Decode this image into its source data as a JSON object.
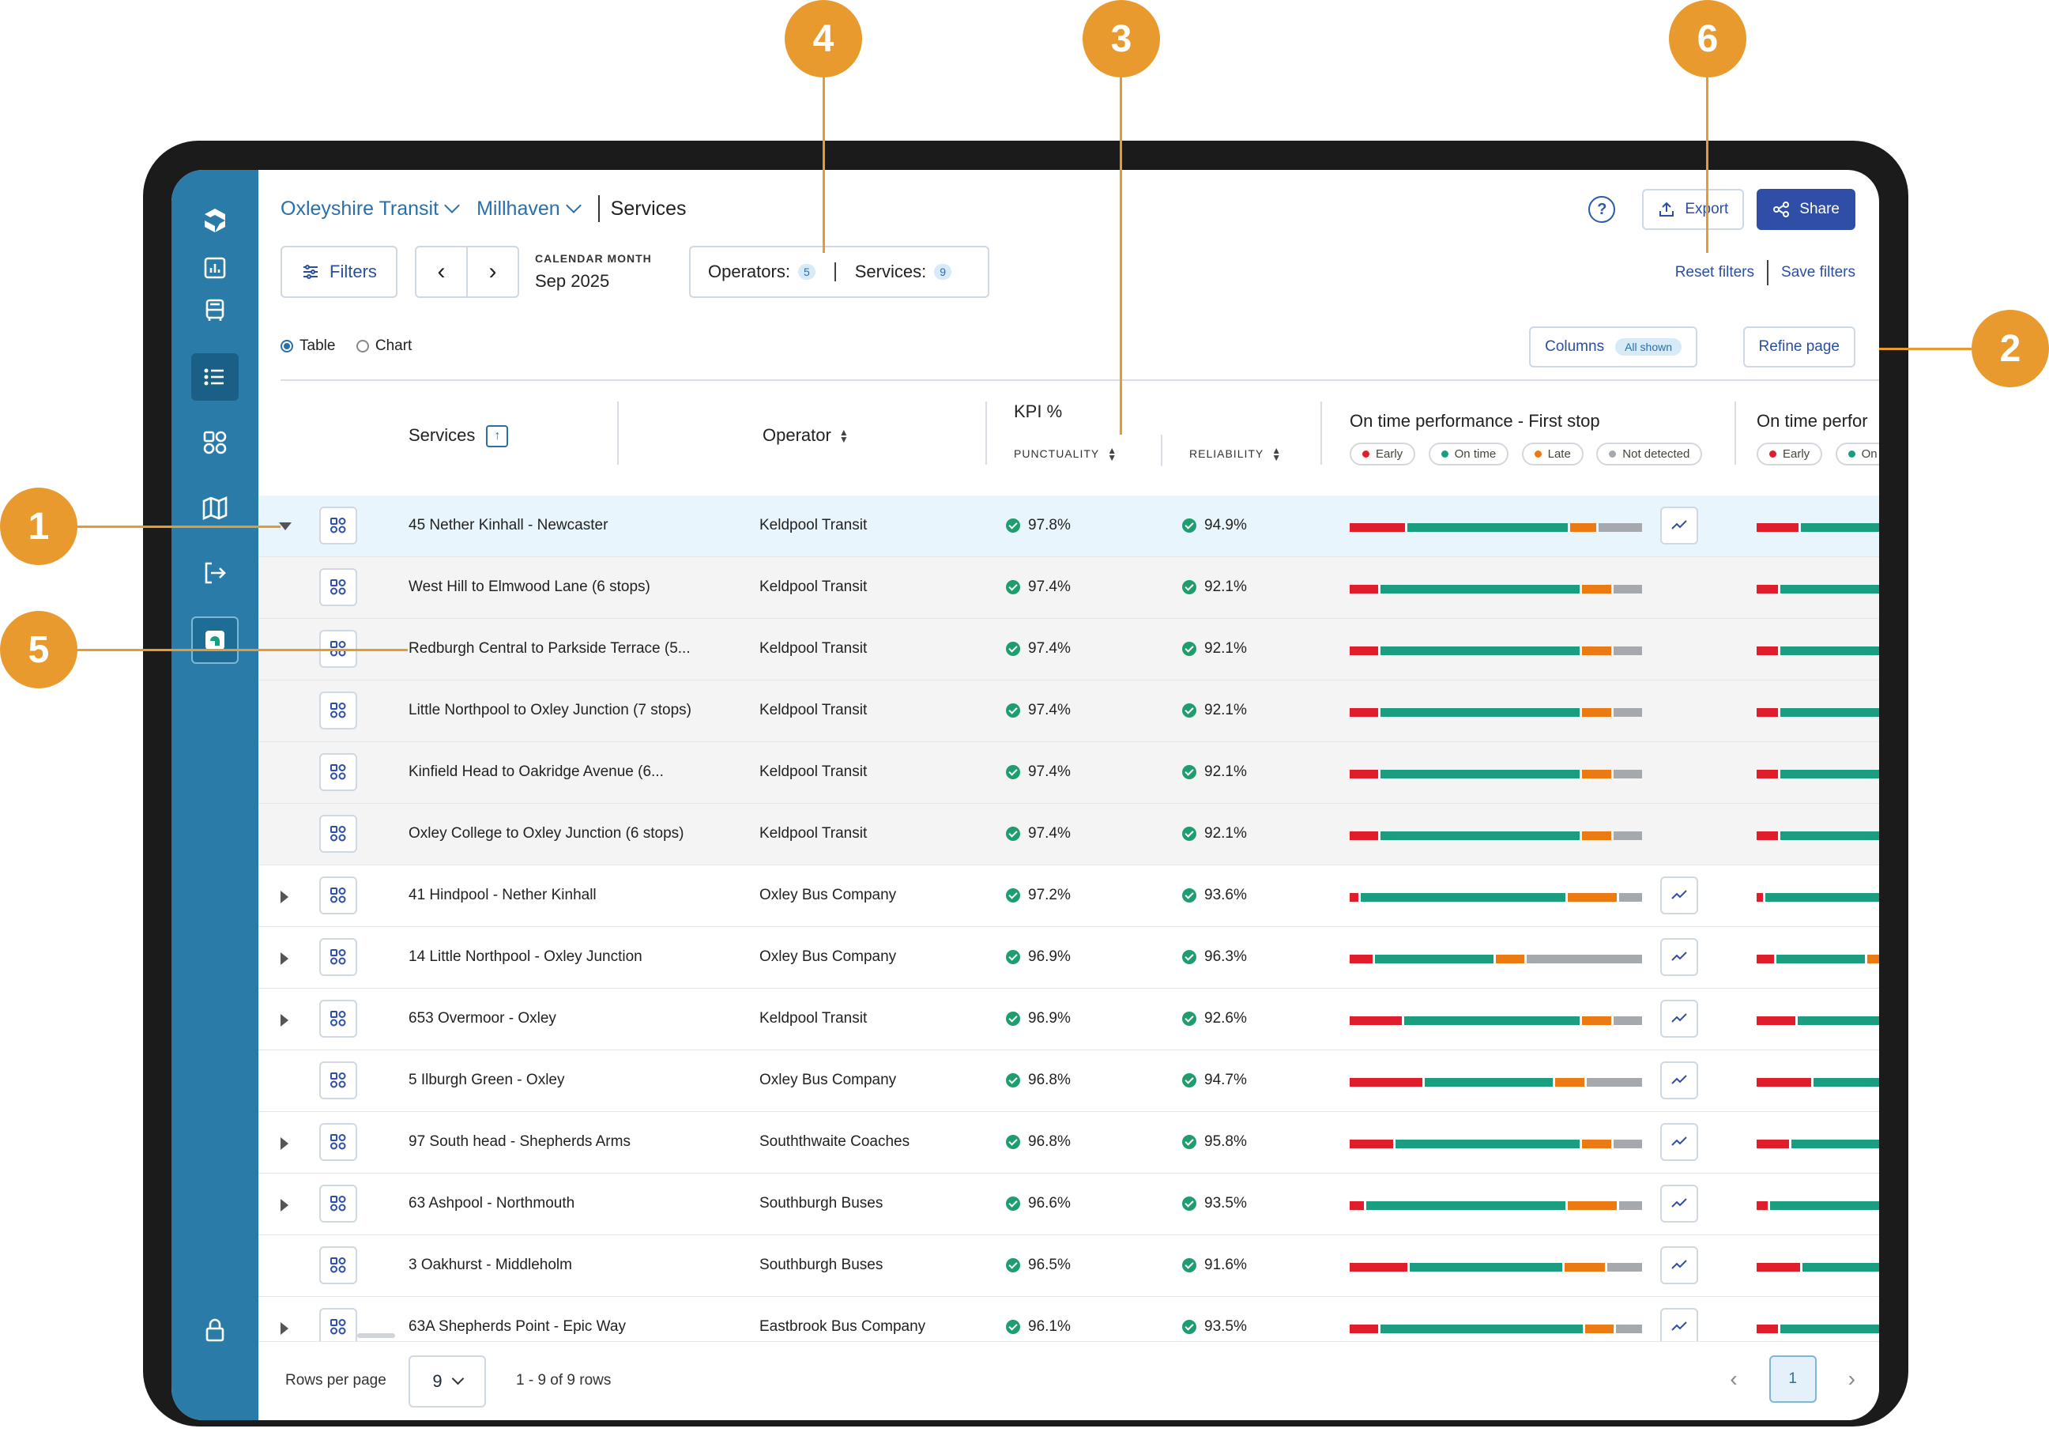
{
  "callouts": [
    "1",
    "2",
    "3",
    "4",
    "5",
    "6"
  ],
  "breadcrumb": {
    "org": "Oxleyshire Transit",
    "region": "Millhaven",
    "page": "Services"
  },
  "header": {
    "export_label": "Export",
    "share_label": "Share",
    "help_icon": "?"
  },
  "filters": {
    "filters_label": "Filters",
    "calendar_label": "CALENDAR MONTH",
    "calendar_value": "Sep 2025",
    "operators_label": "Operators:",
    "operators_count": "5",
    "services_label": "Services:",
    "services_count": "9",
    "reset_label": "Reset filters",
    "save_label": "Save filters"
  },
  "view": {
    "table_label": "Table",
    "chart_label": "Chart",
    "columns_label": "Columns",
    "columns_badge": "All shown",
    "refine_label": "Refine page"
  },
  "columns": {
    "services": "Services",
    "operator": "Operator",
    "kpi": "KPI %",
    "punctuality": "PUNCTUALITY",
    "reliability": "RELIABILITY",
    "otp_first": "On time performance - First stop",
    "otp_next": "On time perfor",
    "legend": [
      "Early",
      "On time",
      "Late",
      "Not detected"
    ],
    "legend_next": [
      "Early",
      "On t"
    ]
  },
  "colors": {
    "early": "#e01e2b",
    "on_time": "#1a9e7f",
    "late": "#ec7a12",
    "not_detected": "#a5a8ac",
    "accent": "#2b7ba8"
  },
  "rows": [
    {
      "kind": "parent-open",
      "name": "45 Nether Kinhall - Newcaster",
      "operator": "Keldpool Transit",
      "punctuality": "97.8%",
      "reliability": "94.9%",
      "otp": [
        0.19,
        0.55,
        0.09,
        0.15
      ],
      "trend": true
    },
    {
      "kind": "child",
      "name": "West Hill to Elmwood Lane (6 stops)",
      "operator": "Keldpool Transit",
      "punctuality": "97.4%",
      "reliability": "92.1%",
      "otp": [
        0.1,
        0.69,
        0.1,
        0.1
      ],
      "trend": false
    },
    {
      "kind": "child",
      "name": "Redburgh Central to Parkside Terrace (5...",
      "operator": "Keldpool Transit",
      "punctuality": "97.4%",
      "reliability": "92.1%",
      "otp": [
        0.1,
        0.69,
        0.1,
        0.1
      ],
      "trend": false
    },
    {
      "kind": "child",
      "name": "Little Northpool to Oxley Junction (7 stops)",
      "operator": "Keldpool Transit",
      "punctuality": "97.4%",
      "reliability": "92.1%",
      "otp": [
        0.1,
        0.69,
        0.1,
        0.1
      ],
      "trend": false
    },
    {
      "kind": "child",
      "name": "Kinfield Head to Oakridge Avenue (6...",
      "operator": "Keldpool Transit",
      "punctuality": "97.4%",
      "reliability": "92.1%",
      "otp": [
        0.1,
        0.69,
        0.1,
        0.1
      ],
      "trend": false
    },
    {
      "kind": "child",
      "name": "Oxley College to Oxley Junction (6 stops)",
      "operator": "Keldpool Transit",
      "punctuality": "97.4%",
      "reliability": "92.1%",
      "otp": [
        0.1,
        0.69,
        0.1,
        0.1
      ],
      "trend": false
    },
    {
      "kind": "parent",
      "name": "41 Hindpool - Nether Kinhall",
      "operator": "Oxley Bus Company",
      "punctuality": "97.2%",
      "reliability": "93.6%",
      "otp": [
        0.03,
        0.71,
        0.17,
        0.08
      ],
      "trend": true
    },
    {
      "kind": "parent",
      "name": "14 Little Northpool - Oxley Junction",
      "operator": "Oxley Bus Company",
      "punctuality": "96.9%",
      "reliability": "96.3%",
      "otp": [
        0.08,
        0.41,
        0.1,
        0.4
      ],
      "trend": true
    },
    {
      "kind": "parent",
      "name": "653 Overmoor - Oxley",
      "operator": "Keldpool Transit",
      "punctuality": "96.9%",
      "reliability": "92.6%",
      "otp": [
        0.18,
        0.61,
        0.1,
        0.1
      ],
      "trend": true
    },
    {
      "kind": "leaf",
      "name": "5 Ilburgh Green - Oxley",
      "operator": "Oxley Bus Company",
      "punctuality": "96.8%",
      "reliability": "94.7%",
      "otp": [
        0.25,
        0.44,
        0.1,
        0.19
      ],
      "trend": true
    },
    {
      "kind": "parent",
      "name": "97 South head - Shepherds Arms",
      "operator": "Souththwaite Coaches",
      "punctuality": "96.8%",
      "reliability": "95.8%",
      "otp": [
        0.15,
        0.64,
        0.1,
        0.1
      ],
      "trend": true
    },
    {
      "kind": "parent",
      "name": "63 Ashpool - Northmouth",
      "operator": "Southburgh Buses",
      "punctuality": "96.6%",
      "reliability": "93.5%",
      "otp": [
        0.05,
        0.69,
        0.17,
        0.08
      ],
      "trend": true
    },
    {
      "kind": "leaf",
      "name": "3 Oakhurst - Middleholm",
      "operator": "Southburgh Buses",
      "punctuality": "96.5%",
      "reliability": "91.6%",
      "otp": [
        0.2,
        0.53,
        0.14,
        0.12
      ],
      "trend": true
    },
    {
      "kind": "parent",
      "name": "63A Shepherds Point - Epic Way",
      "operator": "Eastbrook Bus Company",
      "punctuality": "96.1%",
      "reliability": "93.5%",
      "otp": [
        0.1,
        0.7,
        0.1,
        0.09
      ],
      "trend": true
    }
  ],
  "footer": {
    "rows_per_page_label": "Rows per page",
    "rows_per_page_value": "9",
    "range_label": "1 - 9 of 9 rows",
    "current_page": "1"
  }
}
